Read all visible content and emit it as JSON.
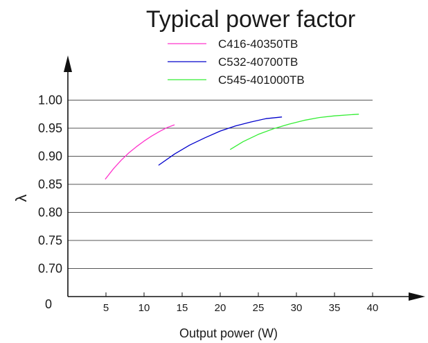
{
  "chart_data": {
    "type": "line",
    "title": "Typical power factor",
    "xlabel": "Output power (W)",
    "ylabel": "λ",
    "origin_label": "0",
    "xlim": [
      0,
      40
    ],
    "ylim": [
      0.65,
      1.0
    ],
    "x_ticks": [
      5,
      10,
      15,
      20,
      25,
      30,
      35,
      40
    ],
    "x_tick_labels": [
      "5",
      "10",
      "15",
      "20",
      "25",
      "30",
      "35",
      "40"
    ],
    "y_ticks": [
      0.7,
      0.75,
      0.8,
      0.85,
      0.9,
      0.95,
      1.0
    ],
    "y_tick_labels": [
      "0.70",
      "0.75",
      "0.80",
      "0.85",
      "0.90",
      "0.95",
      "1.00"
    ],
    "grid": "horizontal",
    "legend_position": "top-right",
    "series": [
      {
        "name": "C416-40350TB",
        "color": "#ff33cc",
        "x": [
          4.9,
          6,
          7,
          8,
          9,
          10,
          11,
          12,
          13,
          14
        ],
        "y": [
          0.859,
          0.878,
          0.893,
          0.906,
          0.917,
          0.927,
          0.936,
          0.944,
          0.951,
          0.956
        ]
      },
      {
        "name": "C532-40700TB",
        "color": "#0000cc",
        "x": [
          11.9,
          14,
          16,
          18,
          20,
          22,
          24,
          26,
          28.1
        ],
        "y": [
          0.884,
          0.904,
          0.92,
          0.933,
          0.945,
          0.954,
          0.961,
          0.967,
          0.97
        ]
      },
      {
        "name": "C545-401000TB",
        "color": "#33ee33",
        "x": [
          21.3,
          23,
          25,
          27,
          29,
          31,
          33,
          35,
          37,
          38.2
        ],
        "y": [
          0.912,
          0.926,
          0.939,
          0.949,
          0.957,
          0.964,
          0.969,
          0.972,
          0.974,
          0.975
        ]
      }
    ]
  }
}
